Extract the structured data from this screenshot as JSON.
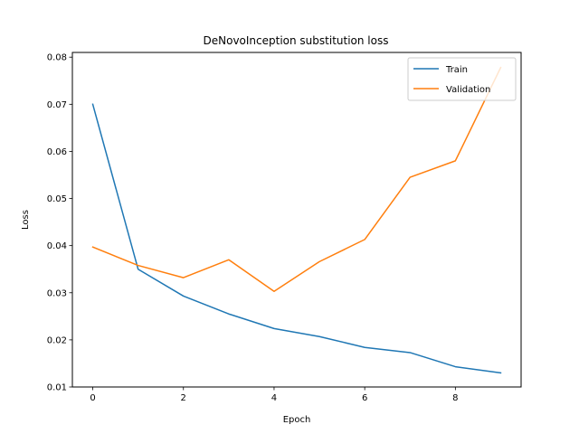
{
  "chart_data": {
    "type": "line",
    "title": "DeNovoInception substitution loss",
    "xlabel": "Epoch",
    "ylabel": "Loss",
    "x": [
      0,
      1,
      2,
      3,
      4,
      5,
      6,
      7,
      8,
      9
    ],
    "xlim": [
      -0.45,
      9.45
    ],
    "ylim": [
      0.01,
      0.081
    ],
    "xticks": [
      0,
      2,
      4,
      6,
      8
    ],
    "yticks": [
      0.01,
      0.02,
      0.03,
      0.04,
      0.05,
      0.06,
      0.07,
      0.08
    ],
    "ytick_labels": [
      "0.01",
      "0.02",
      "0.03",
      "0.04",
      "0.05",
      "0.06",
      "0.07",
      "0.08"
    ],
    "grid": false,
    "legend_position": "top-right",
    "series": [
      {
        "name": "Train",
        "color": "#1f77b4",
        "values": [
          0.07,
          0.035,
          0.0293,
          0.0255,
          0.0224,
          0.0207,
          0.0184,
          0.0173,
          0.0143,
          0.013
        ]
      },
      {
        "name": "Validation",
        "color": "#ff7f0e",
        "values": [
          0.0397,
          0.0358,
          0.0332,
          0.037,
          0.0303,
          0.0366,
          0.0413,
          0.0545,
          0.058,
          0.0778
        ]
      }
    ]
  }
}
